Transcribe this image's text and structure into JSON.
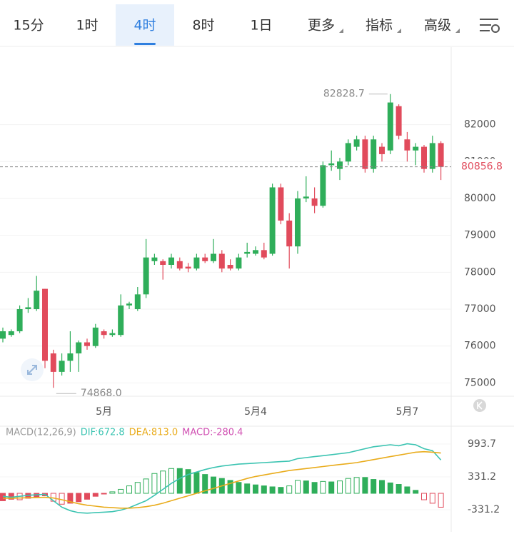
{
  "tabs": {
    "items": [
      "15分",
      "1时",
      "4时",
      "8时",
      "1日",
      "更多",
      "指标",
      "高级"
    ],
    "active": 2
  },
  "chart_data": [
    {
      "type": "candlestick",
      "categories": [
        null,
        null,
        null,
        null,
        null,
        null,
        null,
        null,
        null,
        null,
        null,
        null,
        "5月",
        null,
        null,
        null,
        null,
        null,
        null,
        null,
        null,
        null,
        null,
        null,
        null,
        null,
        null,
        null,
        null,
        null,
        "5月4",
        null,
        null,
        null,
        null,
        null,
        null,
        null,
        null,
        null,
        null,
        null,
        null,
        null,
        null,
        null,
        null,
        null,
        "5月7",
        null,
        null,
        null,
        null
      ],
      "open": [
        76200,
        76300,
        76400,
        77000,
        77000,
        77550,
        75800,
        75300,
        75600,
        75800,
        76100,
        76000,
        76400,
        76300,
        76300,
        77100,
        77000,
        77400,
        78300,
        78300,
        78200,
        78300,
        78150,
        78100,
        78400,
        78300,
        78500,
        78200,
        78100,
        78500,
        78500,
        78600,
        78500,
        80300,
        79400,
        78700,
        80000,
        80000,
        79800,
        80900,
        80800,
        81000,
        81400,
        81600,
        80800,
        81400,
        81300,
        82500,
        81600,
        81300,
        81400,
        80800,
        81500
      ],
      "high": [
        76500,
        76450,
        77100,
        77300,
        77900,
        77550,
        75900,
        75800,
        76400,
        76150,
        76200,
        76600,
        76450,
        76450,
        77400,
        77200,
        77600,
        78900,
        78500,
        78350,
        78500,
        78400,
        78250,
        78500,
        78500,
        78900,
        78600,
        78350,
        78500,
        78800,
        78700,
        78800,
        80400,
        80400,
        79600,
        80200,
        80600,
        80300,
        81000,
        81300,
        81100,
        81600,
        81700,
        81700,
        81700,
        81500,
        82828.7,
        82550,
        81800,
        81500,
        81450,
        81700,
        81550
      ],
      "low": [
        76100,
        76250,
        76350,
        76900,
        76950,
        75400,
        74868,
        75200,
        75300,
        75300,
        75900,
        75950,
        76200,
        76250,
        76250,
        77000,
        76950,
        77300,
        78200,
        77800,
        78100,
        78050,
        78000,
        78050,
        78250,
        78250,
        78000,
        78050,
        78050,
        78400,
        78450,
        78350,
        78450,
        79300,
        78100,
        78500,
        79900,
        79600,
        79750,
        80750,
        80500,
        80900,
        81300,
        80700,
        80700,
        81000,
        81200,
        81600,
        81000,
        80900,
        80700,
        80700,
        80500
      ],
      "close": [
        76400,
        76400,
        77000,
        77050,
        77500,
        75600,
        75300,
        75600,
        75800,
        76100,
        76000,
        76500,
        76300,
        76350,
        77100,
        77150,
        77400,
        78400,
        78400,
        78200,
        78400,
        78100,
        78100,
        78400,
        78300,
        78500,
        78100,
        78100,
        78400,
        78550,
        78600,
        78400,
        80300,
        79400,
        78700,
        80000,
        80050,
        79800,
        80900,
        80950,
        81000,
        81500,
        81600,
        80800,
        81600,
        81200,
        82600,
        81700,
        81300,
        81400,
        80800,
        81500,
        80856.8
      ],
      "up_color": "#2fae5a",
      "down_color": "#e14b5c",
      "ylim": [
        74640,
        84120
      ],
      "yticks": [
        75000,
        76000,
        77000,
        78000,
        79000,
        80000,
        81000,
        82000
      ],
      "grid": true,
      "annotations": [
        {
          "value": 82828.7,
          "label": "82828.7"
        },
        {
          "value": 74868,
          "label": "74868.0"
        }
      ],
      "last_price": {
        "value": 80856.8,
        "label": "80856.8"
      }
    },
    {
      "type": "macd",
      "title": "MACD(12,26,9)",
      "series": [
        {
          "label": "DIF:672.8",
          "color": "#3cc4b2",
          "values": [
            -60,
            -80,
            -60,
            -40,
            -30,
            -20,
            -150,
            -280,
            -350,
            -390,
            -400,
            -390,
            -380,
            -370,
            -340,
            -290,
            -220,
            -150,
            -40,
            80,
            200,
            300,
            380,
            430,
            480,
            520,
            550,
            570,
            590,
            600,
            610,
            620,
            630,
            640,
            650,
            700,
            720,
            740,
            760,
            780,
            800,
            820,
            860,
            900,
            940,
            960,
            980,
            960,
            1000,
            980,
            900,
            860,
            672.8
          ]
        },
        {
          "label": "DEA:813.0",
          "color": "#e9ac1c",
          "values": [
            -100,
            -100,
            -95,
            -90,
            -85,
            -80,
            -95,
            -130,
            -170,
            -210,
            -240,
            -260,
            -280,
            -290,
            -300,
            -300,
            -290,
            -270,
            -240,
            -200,
            -150,
            -100,
            -50,
            0,
            50,
            100,
            150,
            200,
            250,
            300,
            340,
            370,
            400,
            430,
            460,
            480,
            500,
            520,
            540,
            560,
            580,
            600,
            620,
            650,
            680,
            710,
            740,
            770,
            800,
            830,
            840,
            830,
            813
          ]
        }
      ],
      "histogram": {
        "label": "MACD:-280.4",
        "color": "#d04fb2",
        "up_color": "#2fae5a",
        "down_color": "#e14b5c",
        "values": [
          -150,
          -120,
          -130,
          -100,
          -80,
          -50,
          -160,
          -220,
          -200,
          -170,
          -120,
          -60,
          -10,
          30,
          80,
          150,
          220,
          290,
          400,
          450,
          500,
          500,
          480,
          420,
          380,
          330,
          300,
          260,
          220,
          190,
          170,
          150,
          130,
          120,
          150,
          260,
          250,
          220,
          240,
          230,
          250,
          300,
          320,
          320,
          280,
          260,
          210,
          180,
          130,
          60,
          -130,
          -200,
          -280.4
        ]
      },
      "ylim": [
        -778,
        1340
      ],
      "yticks": [
        -331.2,
        331.2,
        993.7
      ]
    }
  ]
}
